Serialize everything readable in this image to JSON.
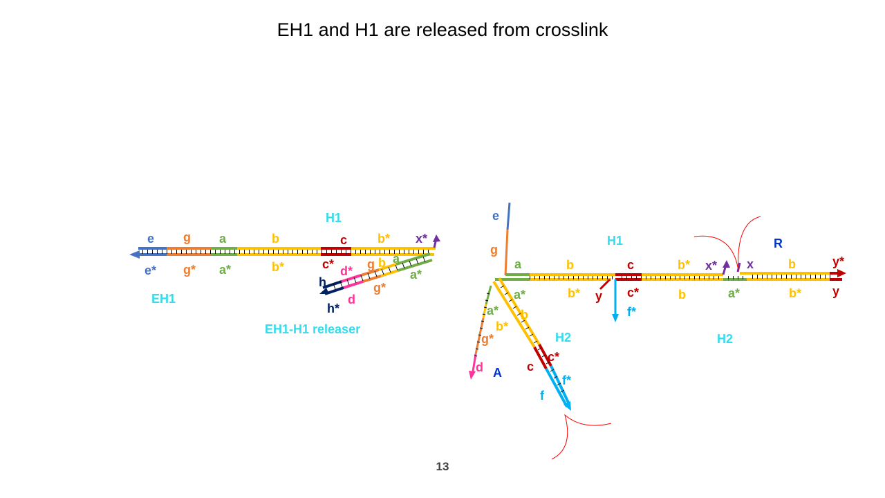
{
  "title": "EH1 and H1 are released from crosslink",
  "page_number": "13",
  "colors": {
    "e": "#4472c4",
    "g": "#ed7d31",
    "a": "#70ad47",
    "b": "#ffc000",
    "c": "#c00000",
    "d": "#ff3399",
    "h": "#002060",
    "x": "#7030a0",
    "f": "#00b0f0",
    "y": "#c00000",
    "cyan_label": "#33ddee",
    "blue_label": "#0033cc"
  },
  "left_complex": {
    "labels": {
      "h1": "H1",
      "eh1": "EH1",
      "releaser": "EH1-H1 releaser",
      "e": "e",
      "g": "g",
      "a": "a",
      "b": "b",
      "c": "c",
      "b_star": "b*",
      "x_star": "x*",
      "e_star": "e*",
      "g_star": "g*",
      "a_star": "a*",
      "b_star2": "b*",
      "c_star": "c*",
      "d_star": "d*",
      "g2": "g",
      "b2": "b",
      "a2": "a",
      "a_star2": "a*",
      "h": "h",
      "h_star": "h*",
      "d": "d",
      "g_star2": "g*"
    }
  },
  "right_complex": {
    "labels": {
      "e": "e",
      "g": "g",
      "a": "a",
      "b": "b",
      "h1": "H1",
      "c": "c",
      "b_star": "b*",
      "x_star": "x*",
      "x": "x",
      "b2": "b",
      "y_star": "y*",
      "R": "R",
      "a_star": "a*",
      "b_star2": "b*",
      "y": "y",
      "c_star": "c*",
      "b3": "b",
      "a_star2": "a*",
      "b_star3": "b*",
      "y2": "y",
      "f_star": "f*",
      "a_star3": "a*",
      "b_star4": "b*",
      "b4": "b",
      "g_star": "g*",
      "d": "d",
      "A": "A",
      "H2": "H2",
      "H2b": "H2",
      "c2": "c",
      "c_star2": "c*",
      "f_star2": "f*",
      "f": "f"
    }
  }
}
